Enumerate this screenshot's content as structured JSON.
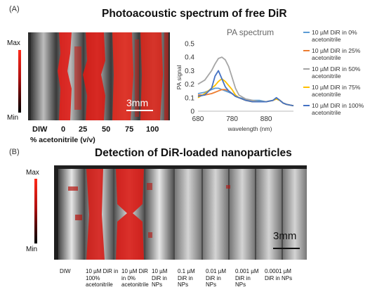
{
  "panel_a": {
    "letter": "(A)",
    "title": "Photoacoustic spectrum of free DiR",
    "colorbar": {
      "max": "Max",
      "min": "Min"
    },
    "scale": "3mm",
    "x_ticks": [
      "DIW",
      "0",
      "25",
      "50",
      "75",
      "100"
    ],
    "x_title": "% acetonitrile (v/v)"
  },
  "panel_b": {
    "letter": "(B)",
    "title": "Detection of DiR-loaded nanoparticles",
    "colorbar": {
      "max": "Max",
      "min": "Min"
    },
    "scale": "3mm",
    "labels": [
      "DIW",
      "10 µM DiR in 100% acetonitrile",
      "10 µM DiR in 0% acetonitrile",
      "10 µM DiR in NPs",
      "0.1 µM DiR in NPs",
      "0.01 µM DiR in NPs",
      "0.001 µM DiR in NPs",
      "0.0001 µM DiR in NPs"
    ]
  },
  "chart_data": {
    "type": "line",
    "title": "PA spectrum",
    "xlabel": "wavelength (nm)",
    "ylabel": "PA signal",
    "xlim": [
      680,
      960
    ],
    "ylim": [
      0,
      0.5
    ],
    "x_ticks": [
      680,
      780,
      880
    ],
    "y_ticks": [
      0,
      0.1,
      0.2,
      0.3,
      0.4,
      0.5
    ],
    "legend_position": "right",
    "x": [
      680,
      700,
      720,
      730,
      740,
      750,
      760,
      770,
      780,
      790,
      800,
      820,
      840,
      860,
      880,
      900,
      910,
      920,
      930,
      940,
      960
    ],
    "series": [
      {
        "name": "10 µM DiR in 0% acetonitrile",
        "color": "#5b9bd5",
        "values": [
          0.13,
          0.14,
          0.16,
          0.17,
          0.17,
          0.16,
          0.15,
          0.14,
          0.13,
          0.11,
          0.1,
          0.09,
          0.08,
          0.08,
          0.07,
          0.08,
          0.1,
          0.08,
          0.06,
          0.05,
          0.04
        ]
      },
      {
        "name": "10 µM DiR in 25% acetonitrile",
        "color": "#ed7d31",
        "values": [
          0.12,
          0.12,
          0.13,
          0.14,
          0.15,
          0.16,
          0.16,
          0.15,
          0.13,
          0.11,
          0.1,
          0.08,
          0.07,
          0.07,
          0.07,
          0.08,
          0.09,
          0.08,
          0.06,
          0.05,
          0.04
        ]
      },
      {
        "name": "10 µM DiR in 50% acetonitrile",
        "color": "#a5a5a5",
        "values": [
          0.2,
          0.23,
          0.3,
          0.35,
          0.39,
          0.4,
          0.38,
          0.33,
          0.25,
          0.17,
          0.12,
          0.09,
          0.08,
          0.07,
          0.07,
          0.08,
          0.09,
          0.08,
          0.06,
          0.05,
          0.04
        ]
      },
      {
        "name": "10 µM DiR in 75% acetonitrile",
        "color": "#ffc000",
        "values": [
          0.1,
          0.13,
          0.17,
          0.19,
          0.22,
          0.24,
          0.22,
          0.19,
          0.16,
          0.12,
          0.1,
          0.08,
          0.07,
          0.07,
          0.07,
          0.08,
          0.09,
          0.08,
          0.06,
          0.05,
          0.04
        ]
      },
      {
        "name": "10 µM DiR in 100% acetonitrile",
        "color": "#4472c4",
        "values": [
          0.11,
          0.12,
          0.17,
          0.26,
          0.3,
          0.24,
          0.18,
          0.15,
          0.13,
          0.11,
          0.1,
          0.08,
          0.07,
          0.07,
          0.07,
          0.08,
          0.1,
          0.08,
          0.06,
          0.05,
          0.04
        ]
      }
    ]
  }
}
